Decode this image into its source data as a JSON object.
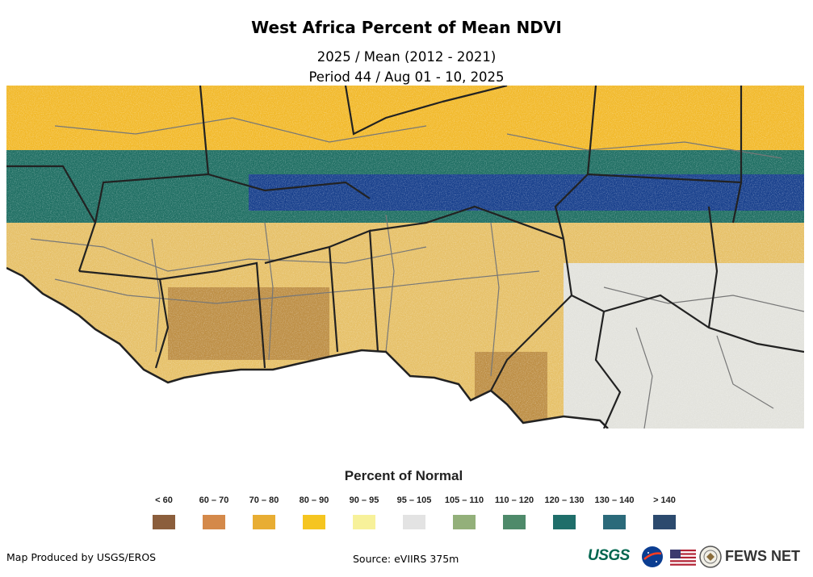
{
  "title": "West Africa Percent of Mean NDVI",
  "subtitle_line1": "2025 / Mean (2012 - 2021)",
  "subtitle_line2": "Period 44 / Aug 01 - 10, 2025",
  "legend": {
    "title": "Percent of Normal",
    "items": [
      {
        "label": "< 60",
        "color": "#8b5e3c"
      },
      {
        "label": "60 – 70",
        "color": "#d4894a"
      },
      {
        "label": "70 – 80",
        "color": "#e8ad33"
      },
      {
        "label": "80 – 90",
        "color": "#f5c520"
      },
      {
        "label": "90 – 95",
        "color": "#f7f19a"
      },
      {
        "label": "95 – 105",
        "color": "#e3e3e3"
      },
      {
        "label": "105 – 110",
        "color": "#93b07a"
      },
      {
        "label": "110 – 120",
        "color": "#4e8a6a"
      },
      {
        "label": "120 – 130",
        "color": "#1f6e6a"
      },
      {
        "label": "130 – 140",
        "color": "#2b6a7a"
      },
      {
        "label": "> 140",
        "color": "#2c4a6e"
      }
    ]
  },
  "footer": {
    "produced_by": "Map Produced by USGS/EROS",
    "source": "Source: eVIIRS 375m"
  },
  "logos": {
    "usgs": "USGS",
    "fews": "FEWS NET"
  },
  "map_colors": {
    "sahara": "#f2b92a",
    "band": "#1e6e62",
    "band_dark": "#173f8c",
    "south": "#e6c067",
    "east": "#e2e2dc",
    "brown": "#9a6528",
    "border": "#222222",
    "admin": "#777777"
  }
}
